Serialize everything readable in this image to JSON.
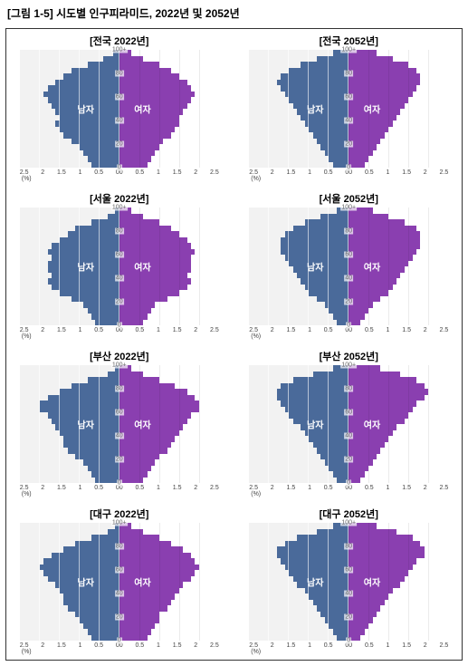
{
  "title": "[그림 1-5] 시도별 인구피라미드, 2022년 및 2052년",
  "male_label": "남자",
  "female_label": "여자",
  "male_color": "#4a6a9a",
  "female_color": "#8a3fb0",
  "bg_left": "#f2f2f2",
  "bg_right": "#ffffff",
  "x_ticks_left": [
    "2.5",
    "2",
    "1.5",
    "1",
    "0.5",
    "0"
  ],
  "x_ticks_right": [
    "0",
    "0.5",
    "1",
    "1.5",
    "2",
    "2.5"
  ],
  "x_unit": "(%)",
  "y_ticks": [
    "0",
    "20",
    "40",
    "60",
    "80",
    "100+"
  ],
  "xlim": [
    0,
    2.5
  ],
  "ylim": [
    0,
    100
  ],
  "title_fontsize": 12,
  "cell_title_fontsize": 11,
  "tick_fontsize": 7,
  "label_fontsize": 10,
  "charts": [
    {
      "title": "[전국 2022년]",
      "male": [
        0.7,
        0.8,
        0.9,
        1.0,
        1.2,
        1.4,
        1.5,
        1.6,
        1.5,
        1.6,
        1.7,
        1.8,
        1.9,
        1.8,
        1.6,
        1.4,
        1.2,
        0.8,
        0.4,
        0.15
      ],
      "female": [
        0.7,
        0.8,
        0.9,
        1.0,
        1.1,
        1.3,
        1.4,
        1.5,
        1.5,
        1.6,
        1.7,
        1.8,
        1.9,
        1.8,
        1.7,
        1.5,
        1.3,
        1.0,
        0.6,
        0.3
      ]
    },
    {
      "title": "[전국 2052년]",
      "male": [
        0.4,
        0.5,
        0.6,
        0.7,
        0.8,
        0.9,
        1.0,
        1.1,
        1.2,
        1.3,
        1.4,
        1.5,
        1.6,
        1.7,
        1.8,
        1.7,
        1.5,
        1.2,
        0.8,
        0.4
      ],
      "female": [
        0.4,
        0.5,
        0.6,
        0.7,
        0.8,
        0.9,
        1.0,
        1.1,
        1.2,
        1.3,
        1.4,
        1.5,
        1.6,
        1.7,
        1.8,
        1.8,
        1.7,
        1.5,
        1.1,
        0.7
      ]
    },
    {
      "title": "[서울 2022년]",
      "male": [
        0.6,
        0.7,
        0.8,
        0.9,
        1.2,
        1.5,
        1.7,
        1.8,
        1.7,
        1.8,
        1.8,
        1.7,
        1.8,
        1.7,
        1.5,
        1.3,
        1.1,
        0.7,
        0.3,
        0.1
      ],
      "female": [
        0.6,
        0.7,
        0.8,
        0.9,
        1.2,
        1.5,
        1.7,
        1.8,
        1.7,
        1.8,
        1.8,
        1.8,
        1.9,
        1.8,
        1.7,
        1.5,
        1.3,
        1.0,
        0.6,
        0.3
      ]
    },
    {
      "title": "[서울 2052년]",
      "male": [
        0.3,
        0.4,
        0.5,
        0.6,
        0.8,
        1.0,
        1.1,
        1.2,
        1.3,
        1.4,
        1.5,
        1.6,
        1.7,
        1.7,
        1.7,
        1.6,
        1.4,
        1.1,
        0.7,
        0.3
      ],
      "female": [
        0.3,
        0.4,
        0.5,
        0.6,
        0.8,
        1.0,
        1.1,
        1.2,
        1.3,
        1.4,
        1.5,
        1.6,
        1.7,
        1.8,
        1.8,
        1.8,
        1.7,
        1.4,
        1.0,
        0.6
      ]
    },
    {
      "title": "[부산 2022년]",
      "male": [
        0.6,
        0.7,
        0.8,
        0.9,
        1.1,
        1.3,
        1.4,
        1.4,
        1.5,
        1.6,
        1.7,
        1.8,
        2.0,
        2.0,
        1.8,
        1.5,
        1.2,
        0.8,
        0.3,
        0.1
      ],
      "female": [
        0.6,
        0.7,
        0.8,
        0.9,
        1.0,
        1.2,
        1.3,
        1.4,
        1.5,
        1.6,
        1.7,
        1.8,
        2.0,
        2.0,
        1.9,
        1.7,
        1.4,
        1.0,
        0.6,
        0.3
      ]
    },
    {
      "title": "[부산 2052년]",
      "male": [
        0.3,
        0.4,
        0.5,
        0.6,
        0.7,
        0.8,
        0.9,
        1.0,
        1.1,
        1.2,
        1.4,
        1.5,
        1.6,
        1.7,
        1.8,
        1.8,
        1.7,
        1.4,
        0.9,
        0.4
      ],
      "female": [
        0.3,
        0.4,
        0.5,
        0.6,
        0.7,
        0.8,
        0.9,
        1.0,
        1.1,
        1.2,
        1.4,
        1.5,
        1.6,
        1.7,
        1.9,
        2.0,
        1.9,
        1.7,
        1.3,
        0.8
      ]
    },
    {
      "title": "[대구 2022년]",
      "male": [
        0.7,
        0.8,
        0.9,
        1.0,
        1.1,
        1.3,
        1.4,
        1.4,
        1.5,
        1.6,
        1.8,
        1.9,
        2.0,
        1.9,
        1.7,
        1.4,
        1.1,
        0.7,
        0.3,
        0.1
      ],
      "female": [
        0.7,
        0.8,
        0.9,
        1.0,
        1.0,
        1.2,
        1.3,
        1.4,
        1.5,
        1.6,
        1.8,
        1.9,
        2.0,
        1.9,
        1.8,
        1.6,
        1.3,
        1.0,
        0.6,
        0.3
      ]
    },
    {
      "title": "[대구 2052년]",
      "male": [
        0.3,
        0.4,
        0.5,
        0.6,
        0.7,
        0.8,
        0.9,
        1.0,
        1.1,
        1.3,
        1.4,
        1.5,
        1.6,
        1.7,
        1.8,
        1.8,
        1.6,
        1.3,
        0.8,
        0.4
      ],
      "female": [
        0.3,
        0.4,
        0.5,
        0.6,
        0.7,
        0.8,
        0.9,
        1.0,
        1.1,
        1.3,
        1.4,
        1.5,
        1.6,
        1.7,
        1.9,
        1.9,
        1.8,
        1.6,
        1.2,
        0.7
      ]
    }
  ]
}
